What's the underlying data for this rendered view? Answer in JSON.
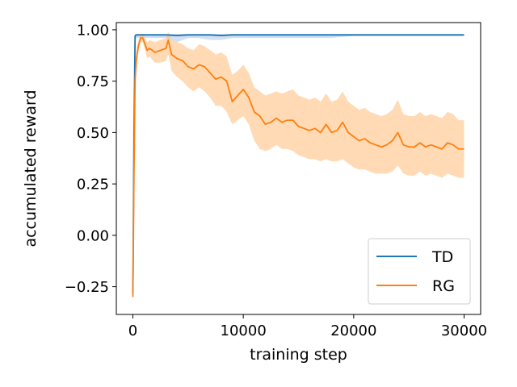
{
  "chart_data": {
    "type": "line",
    "title": "",
    "xlabel": "training step",
    "ylabel": "accumulated reward",
    "xlim": [
      -1500,
      31500
    ],
    "ylim": [
      -0.385,
      1.035
    ],
    "xticks": [
      0,
      10000,
      20000,
      30000
    ],
    "xtick_labels": [
      "0",
      "10000",
      "20000",
      "30000"
    ],
    "yticks": [
      -0.25,
      0.0,
      0.25,
      0.5,
      0.75,
      1.0
    ],
    "ytick_labels": [
      "−0.25",
      "0.00",
      "0.25",
      "0.50",
      "0.75",
      "1.00"
    ],
    "grid": false,
    "legend_position": "lower-right",
    "series": [
      {
        "name": "TD",
        "color": "#1f77b4",
        "band_color": "#aec7e8",
        "x": [
          0,
          100,
          200,
          300,
          500,
          1000,
          2000,
          3000,
          4000,
          5000,
          6000,
          7000,
          8000,
          9000,
          10000,
          12000,
          14000,
          16000,
          18000,
          20000,
          22000,
          24000,
          26000,
          28000,
          30000
        ],
        "y": [
          -0.28,
          0.5,
          0.97,
          0.975,
          0.975,
          0.975,
          0.975,
          0.975,
          0.972,
          0.975,
          0.975,
          0.975,
          0.972,
          0.975,
          0.975,
          0.975,
          0.975,
          0.975,
          0.975,
          0.975,
          0.975,
          0.975,
          0.975,
          0.975,
          0.975
        ],
        "lower": [
          -0.29,
          0.45,
          0.95,
          0.96,
          0.96,
          0.96,
          0.96,
          0.96,
          0.94,
          0.96,
          0.96,
          0.95,
          0.95,
          0.96,
          0.96,
          0.96,
          0.96,
          0.96,
          0.96,
          0.97,
          0.97,
          0.97,
          0.97,
          0.97,
          0.97
        ],
        "upper": [
          -0.27,
          0.55,
          0.98,
          0.98,
          0.98,
          0.98,
          0.98,
          0.98,
          0.98,
          0.98,
          0.98,
          0.98,
          0.98,
          0.98,
          0.98,
          0.98,
          0.98,
          0.98,
          0.98,
          0.98,
          0.98,
          0.98,
          0.98,
          0.98,
          0.98
        ]
      },
      {
        "name": "RG",
        "color": "#ff7f0e",
        "band_color": "#ffbb78",
        "x": [
          0,
          100,
          200,
          300,
          500,
          700,
          900,
          1100,
          1300,
          1500,
          2000,
          2500,
          3000,
          3200,
          3500,
          4000,
          4500,
          5000,
          5500,
          6000,
          6500,
          7000,
          7500,
          8000,
          8500,
          9000,
          9500,
          10000,
          10500,
          11000,
          11500,
          12000,
          12500,
          13000,
          13500,
          14000,
          14500,
          15000,
          15500,
          16000,
          16500,
          17000,
          17500,
          18000,
          18500,
          19000,
          19500,
          20000,
          20500,
          21000,
          21500,
          22000,
          22500,
          23000,
          23500,
          24000,
          24500,
          25000,
          25500,
          26000,
          26500,
          27000,
          27500,
          28000,
          28500,
          29000,
          29500,
          30000
        ],
        "y": [
          -0.3,
          0.3,
          0.75,
          0.85,
          0.92,
          0.96,
          0.96,
          0.93,
          0.9,
          0.91,
          0.89,
          0.9,
          0.91,
          0.95,
          0.88,
          0.86,
          0.85,
          0.82,
          0.81,
          0.83,
          0.82,
          0.79,
          0.76,
          0.77,
          0.75,
          0.65,
          0.68,
          0.71,
          0.67,
          0.6,
          0.58,
          0.54,
          0.55,
          0.57,
          0.55,
          0.56,
          0.56,
          0.53,
          0.52,
          0.51,
          0.52,
          0.5,
          0.54,
          0.5,
          0.51,
          0.55,
          0.5,
          0.48,
          0.46,
          0.47,
          0.45,
          0.44,
          0.43,
          0.44,
          0.46,
          0.5,
          0.44,
          0.43,
          0.43,
          0.45,
          0.43,
          0.44,
          0.43,
          0.42,
          0.45,
          0.44,
          0.42,
          0.42
        ],
        "lower": [
          -0.32,
          0.2,
          0.7,
          0.8,
          0.9,
          0.94,
          0.94,
          0.9,
          0.86,
          0.87,
          0.84,
          0.84,
          0.85,
          0.88,
          0.8,
          0.77,
          0.75,
          0.72,
          0.7,
          0.72,
          0.7,
          0.67,
          0.63,
          0.63,
          0.6,
          0.54,
          0.56,
          0.58,
          0.54,
          0.46,
          0.42,
          0.41,
          0.42,
          0.44,
          0.42,
          0.42,
          0.41,
          0.39,
          0.38,
          0.37,
          0.37,
          0.36,
          0.37,
          0.36,
          0.36,
          0.37,
          0.35,
          0.33,
          0.32,
          0.32,
          0.31,
          0.3,
          0.3,
          0.3,
          0.31,
          0.34,
          0.3,
          0.29,
          0.29,
          0.31,
          0.29,
          0.3,
          0.29,
          0.28,
          0.3,
          0.29,
          0.28,
          0.28
        ],
        "upper": [
          -0.27,
          0.4,
          0.8,
          0.9,
          0.95,
          0.98,
          0.98,
          0.96,
          0.94,
          0.95,
          0.94,
          0.95,
          0.96,
          0.99,
          0.95,
          0.94,
          0.93,
          0.91,
          0.9,
          0.93,
          0.92,
          0.9,
          0.88,
          0.89,
          0.87,
          0.78,
          0.8,
          0.83,
          0.79,
          0.72,
          0.7,
          0.68,
          0.69,
          0.7,
          0.69,
          0.7,
          0.71,
          0.68,
          0.67,
          0.66,
          0.67,
          0.65,
          0.69,
          0.65,
          0.66,
          0.7,
          0.65,
          0.63,
          0.61,
          0.62,
          0.6,
          0.59,
          0.58,
          0.59,
          0.61,
          0.66,
          0.59,
          0.58,
          0.58,
          0.6,
          0.58,
          0.59,
          0.58,
          0.57,
          0.6,
          0.59,
          0.56,
          0.56
        ]
      }
    ]
  }
}
